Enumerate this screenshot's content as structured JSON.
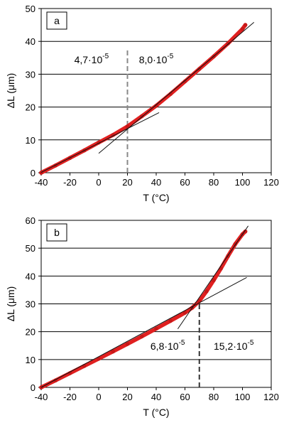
{
  "chart_data": [
    {
      "type": "line",
      "panel_label": "a",
      "xlabel": "T (°C)",
      "ylabel": "ΔL (μm)",
      "xlim": [
        -40,
        120
      ],
      "ylim": [
        0,
        50
      ],
      "x_ticks": [
        -40,
        -20,
        0,
        20,
        40,
        60,
        80,
        100,
        120
      ],
      "y_ticks": [
        0,
        10,
        20,
        30,
        40,
        50
      ],
      "grid": "horizontal",
      "series": [
        {
          "color": "#e02020",
          "style": "thick-markers",
          "x": [
            -40,
            -30,
            -20,
            -10,
            0,
            10,
            20,
            30,
            40,
            50,
            60,
            70,
            80,
            90,
            100,
            102
          ],
          "y": [
            0,
            2.2,
            4.5,
            6.8,
            9.2,
            11.5,
            14.1,
            17.2,
            20.4,
            24.0,
            27.8,
            31.6,
            35.4,
            39.4,
            43.8,
            45.0
          ]
        }
      ],
      "fit_lines": [
        {
          "x": [
            -40,
            42
          ],
          "y": [
            0.1,
            18.3
          ]
        },
        {
          "x": [
            0,
            108
          ],
          "y": [
            5.9,
            45.8
          ]
        }
      ],
      "vline": {
        "x": 20,
        "y_range": [
          0,
          38
        ],
        "color": "#888888"
      },
      "annotations": [
        {
          "text": "4,7·10",
          "sup": "-5",
          "x": -17,
          "y": 33.3
        },
        {
          "text": "8,0·10",
          "sup": "-5",
          "x": 28,
          "y": 33.3
        }
      ]
    },
    {
      "type": "line",
      "panel_label": "b",
      "xlabel": "T (°C)",
      "ylabel": "ΔL (μm)",
      "xlim": [
        -40,
        120
      ],
      "ylim": [
        0,
        60
      ],
      "x_ticks": [
        -40,
        -20,
        0,
        20,
        40,
        60,
        80,
        100,
        120
      ],
      "y_ticks": [
        0,
        10,
        20,
        30,
        40,
        50,
        60
      ],
      "grid": "horizontal",
      "series": [
        {
          "color": "#e02020",
          "style": "thick-markers",
          "x": [
            -40,
            -30,
            -20,
            -10,
            0,
            10,
            20,
            30,
            40,
            50,
            60,
            65,
            70,
            75,
            80,
            85,
            90,
            95,
            100,
            102
          ],
          "y": [
            0,
            2.5,
            5.1,
            7.7,
            10.3,
            12.9,
            15.6,
            18.3,
            21.1,
            23.9,
            26.8,
            28.6,
            31.0,
            34.5,
            38.5,
            42.7,
            47.2,
            51.5,
            55.0,
            56.0
          ]
        }
      ],
      "fit_lines": [
        {
          "x": [
            -40,
            103
          ],
          "y": [
            0.0,
            39.5
          ]
        },
        {
          "x": [
            55,
            104
          ],
          "y": [
            21.0,
            58.0
          ]
        }
      ],
      "vline": {
        "x": 70,
        "y_range": [
          0,
          31
        ],
        "color": "#333333"
      },
      "annotations": [
        {
          "text": "6,8·10",
          "sup": "-5",
          "x": 36,
          "y": 13.5
        },
        {
          "text": "15,2·10",
          "sup": "-5",
          "x": 80,
          "y": 13.5
        }
      ]
    }
  ]
}
